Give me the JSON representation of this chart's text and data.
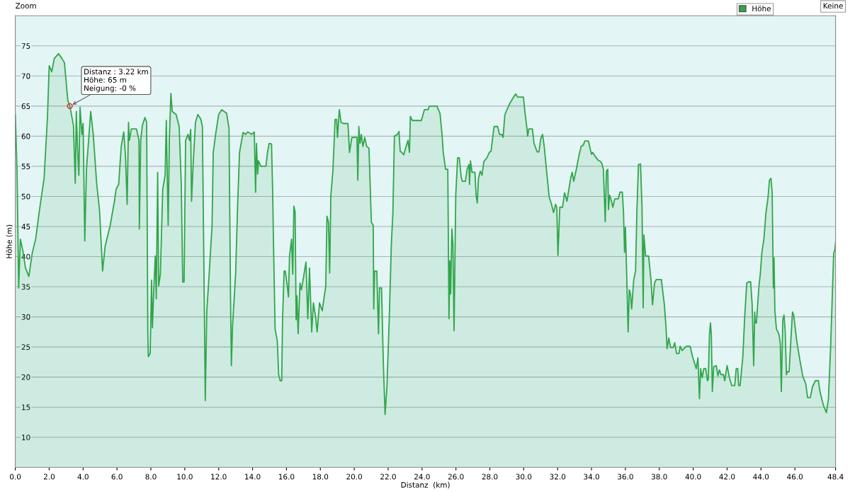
{
  "chart_data": {
    "type": "area",
    "xlabel": "Distanz  (km)",
    "ylabel": "Höhe (m)",
    "xlim": [
      0,
      48.4
    ],
    "ylim": [
      5,
      80
    ],
    "xticks": [
      {
        "value": 0,
        "label": "0.0"
      },
      {
        "value": 2,
        "label": "2.0"
      },
      {
        "value": 4,
        "label": "4.0"
      },
      {
        "value": 6,
        "label": "6.0"
      },
      {
        "value": 8,
        "label": "8.0"
      },
      {
        "value": 10,
        "label": "10.0"
      },
      {
        "value": 12,
        "label": "12.0"
      },
      {
        "value": 14,
        "label": "14.0"
      },
      {
        "value": 16,
        "label": "16.0"
      },
      {
        "value": 18,
        "label": "18.0"
      },
      {
        "value": 20,
        "label": "20.0"
      },
      {
        "value": 22,
        "label": "22.0"
      },
      {
        "value": 24,
        "label": "24.0"
      },
      {
        "value": 26,
        "label": "26.0"
      },
      {
        "value": 28,
        "label": "28.0"
      },
      {
        "value": 30,
        "label": "30.0"
      },
      {
        "value": 32,
        "label": "32.0"
      },
      {
        "value": 34,
        "label": "34.0"
      },
      {
        "value": 36,
        "label": "36.0"
      },
      {
        "value": 38,
        "label": "38.0"
      },
      {
        "value": 40,
        "label": "40.0"
      },
      {
        "value": 42,
        "label": "42.0"
      },
      {
        "value": 44,
        "label": "44.0"
      },
      {
        "value": 46,
        "label": "46.0"
      },
      48.4
    ],
    "yticks": [
      10,
      15,
      20,
      25,
      30,
      35,
      40,
      45,
      50,
      55,
      60,
      65,
      70,
      75
    ],
    "grid": "y",
    "legend": "top right",
    "annotations": [
      {
        "text": "Distanz : 3.22 km\nHöhe: 65 m\nNeigung: -0 %",
        "x": 3.22,
        "y": 65
      },
      "Zoom",
      "Keine"
    ],
    "series": [
      {
        "name": "Höhe",
        "color": "#30a64a",
        "x": [
          0,
          0.1,
          0.2,
          0.3,
          0.45,
          0.6,
          0.8,
          1.0,
          1.2,
          1.45,
          1.7,
          1.9,
          2.0,
          2.15,
          2.3,
          2.55,
          2.75,
          2.9,
          3.1,
          3.22,
          3.43,
          3.54,
          3.6,
          3.68,
          3.75,
          3.82,
          3.93,
          4.0,
          4.1,
          4.2,
          4.45,
          4.6,
          4.8,
          4.97,
          5.15,
          5.3,
          5.6,
          5.85,
          5.95,
          6.1,
          6.25,
          6.4,
          6.5,
          6.6,
          6.68,
          6.73,
          6.85,
          7.15,
          7.3,
          7.32,
          7.4,
          7.5,
          7.65,
          7.75,
          7.82,
          7.85,
          7.96,
          8.04,
          8.09,
          8.18,
          8.26,
          8.32,
          8.4,
          8.46,
          8.56,
          8.7,
          8.84,
          8.91,
          9.02,
          9.09,
          9.18,
          9.26,
          9.49,
          9.67,
          9.79,
          9.88,
          9.96,
          10.05,
          10.19,
          10.28,
          10.35,
          10.4,
          10.49,
          10.63,
          10.77,
          10.95,
          11.04,
          11.16,
          11.21,
          11.3,
          11.44,
          11.61,
          11.68,
          11.82,
          12.0,
          12.18,
          12.47,
          12.61,
          12.7,
          12.75,
          12.82,
          13.0,
          13.12,
          13.23,
          13.44,
          13.58,
          13.72,
          13.96,
          14.1,
          14.18,
          14.23,
          14.3,
          14.35,
          14.49,
          14.79,
          14.88,
          14.98,
          15.12,
          15.19,
          15.23,
          15.33,
          15.46,
          15.54,
          15.63,
          15.72,
          15.77,
          15.86,
          15.93,
          16.05,
          16.12,
          16.18,
          16.3,
          16.37,
          16.44,
          16.51,
          16.57,
          16.62,
          16.69,
          16.8,
          16.88,
          17.01,
          17.15,
          17.26,
          17.36,
          17.49,
          17.59,
          17.72,
          17.81,
          17.95,
          18.11,
          18.21,
          18.32,
          18.39,
          18.48,
          18.55,
          18.62,
          18.74,
          18.87,
          18.96,
          19.01,
          19.12,
          19.22,
          19.36,
          19.63,
          19.72,
          19.86,
          20.16,
          20.21,
          20.27,
          20.34,
          20.42,
          20.51,
          20.62,
          20.73,
          20.87,
          21.01,
          21.12,
          21.15,
          21.2,
          21.33,
          21.43,
          21.49,
          21.61,
          21.72,
          21.82,
          21.93,
          22.07,
          22.19,
          22.28,
          22.37,
          22.55,
          22.64,
          22.71,
          22.81,
          22.92,
          23.03,
          23.17,
          23.26,
          23.31,
          23.43,
          23.96,
          24.14,
          24.35,
          24.44,
          24.88,
          25.06,
          25.18,
          25.25,
          25.39,
          25.52,
          25.59,
          25.64,
          25.69,
          25.76,
          25.82,
          25.89,
          25.99,
          26.1,
          26.2,
          26.31,
          26.38,
          26.56,
          26.66,
          26.77,
          26.8,
          26.86,
          26.95,
          27.12,
          27.19,
          27.26,
          27.33,
          27.44,
          27.54,
          27.65,
          27.83,
          27.97,
          28.07,
          28.25,
          28.46,
          28.57,
          28.71,
          28.78,
          28.89,
          29.17,
          29.38,
          29.52,
          29.64,
          29.98,
          30.08,
          30.19,
          30.23,
          30.3,
          30.51,
          30.61,
          30.79,
          30.9,
          31.0,
          31.11,
          31.21,
          31.35,
          31.5,
          31.64,
          31.76,
          31.88,
          31.95,
          32.02,
          32.13,
          32.29,
          32.41,
          32.55,
          32.77,
          32.86,
          32.95,
          33.12,
          33.26,
          33.39,
          33.51,
          33.61,
          33.82,
          33.93,
          34.0,
          34.07,
          34.18,
          34.39,
          34.49,
          34.61,
          34.7,
          34.81,
          34.88,
          34.96,
          35.0,
          35.07,
          35.16,
          35.26,
          35.37,
          35.58,
          35.68,
          35.82,
          35.89,
          35.95,
          36.0,
          36.07,
          36.16,
          36.23,
          36.3,
          36.37,
          36.49,
          36.6,
          36.68,
          36.77,
          36.89,
          36.98,
          37.05,
          37.09,
          37.19,
          37.37,
          37.51,
          37.6,
          37.72,
          37.82,
          38.12,
          38.3,
          38.39,
          38.46,
          38.56,
          38.67,
          38.82,
          38.91,
          39.02,
          39.16,
          39.23,
          39.35,
          39.58,
          39.82,
          39.96,
          40.18,
          40.28,
          40.37,
          40.44,
          40.53,
          40.63,
          40.74,
          40.84,
          40.89,
          40.96,
          41.02,
          41.07,
          41.13,
          41.21,
          41.36,
          41.46,
          41.55,
          41.64,
          41.79,
          41.86,
          42.0,
          42.14,
          42.27,
          42.45,
          42.54,
          42.63,
          42.68,
          42.77,
          42.93,
          43.04,
          43.16,
          43.25,
          43.39,
          43.48,
          43.57,
          43.63,
          43.66,
          43.73,
          43.88,
          43.96,
          44.05,
          44.18,
          44.29,
          44.41,
          44.5,
          44.59,
          44.66,
          44.73,
          44.77,
          44.82,
          44.91,
          45.0,
          45.07,
          45.14,
          45.2,
          45.29,
          45.36,
          45.43,
          45.5,
          45.57,
          45.66,
          45.77,
          45.86,
          45.93,
          46.11,
          46.29,
          46.46,
          46.64,
          46.75,
          46.91,
          47.04,
          47.21,
          47.39,
          47.48,
          47.63,
          47.71,
          47.86,
          47.98,
          48.11,
          48.29,
          48.36,
          48.4
        ],
        "values": [
          63.6,
          54.5,
          34.8,
          42.9,
          40.9,
          38.1,
          36.7,
          40.6,
          42.9,
          48.2,
          53,
          63.3,
          71.7,
          70.7,
          72.9,
          73.7,
          72.9,
          72.2,
          65.9,
          65,
          61.8,
          52.2,
          64.1,
          57.3,
          53.5,
          64.8,
          60.3,
          62.1,
          42.6,
          54.5,
          64.1,
          60.3,
          52.2,
          47.7,
          37.6,
          41.7,
          45.2,
          49.2,
          51.2,
          52,
          58.3,
          60.7,
          56.8,
          48.7,
          62.3,
          59.3,
          61.2,
          61.2,
          59.3,
          44.6,
          59.3,
          61.8,
          63.1,
          62.3,
          27,
          23.4,
          23.9,
          36.1,
          28.2,
          35.1,
          40.1,
          33,
          54,
          35.1,
          37.1,
          51.2,
          53.5,
          62.6,
          45.2,
          59.3,
          67.1,
          64.1,
          63.6,
          61.6,
          52.2,
          35.8,
          35.8,
          59.3,
          60.3,
          59.3,
          61.1,
          49.2,
          55,
          62.3,
          63.6,
          62.8,
          61.6,
          30,
          16.1,
          31,
          37.1,
          45.2,
          57.3,
          60.3,
          63.6,
          64.4,
          63.8,
          61.3,
          33,
          21.9,
          28.5,
          37.1,
          48.7,
          57.3,
          60.6,
          60.3,
          60.7,
          60.3,
          60.7,
          50.7,
          58.8,
          53.7,
          55.9,
          55,
          55,
          57.3,
          58.8,
          58.7,
          50.2,
          42.9,
          28,
          26,
          20.4,
          19.4,
          19.4,
          29.5,
          37.6,
          37.6,
          35.1,
          33.3,
          40.1,
          42.9,
          37.1,
          48.4,
          47.4,
          29.5,
          33.5,
          27.2,
          35.6,
          34.5,
          36.6,
          39.1,
          29.7,
          38.1,
          27.5,
          32.3,
          30,
          27.5,
          32.3,
          31,
          33,
          35.1,
          46.7,
          45.7,
          37.3,
          50.2,
          54.2,
          62.8,
          62.8,
          59.8,
          64.4,
          62.3,
          62.1,
          62.1,
          57.3,
          59.8,
          59.8,
          52.7,
          61.6,
          58.8,
          60.3,
          58.3,
          59.8,
          58.3,
          58,
          45.7,
          45.2,
          31.3,
          37.6,
          37.6,
          27.2,
          34.8,
          34.8,
          21.9,
          13.8,
          18.4,
          30,
          42.1,
          47.2,
          60,
          60.3,
          60.8,
          57.5,
          57.3,
          56.9,
          58,
          59.3,
          57.3,
          63.3,
          62.6,
          62.6,
          64.4,
          64.4,
          65,
          65,
          63.8,
          60.3,
          57.3,
          54.5,
          54.5,
          29.7,
          39.3,
          33.8,
          44.6,
          42.1,
          27.7,
          50.2,
          56.4,
          56.4,
          53.2,
          52.5,
          52.5,
          54.5,
          55.3,
          52,
          55.9,
          54,
          54,
          50.2,
          48.9,
          53,
          54.2,
          53.5,
          55.8,
          56.4,
          57.3,
          57.5,
          61.6,
          61.6,
          60.3,
          60.3,
          59.8,
          63.6,
          65.4,
          66.4,
          67,
          66.5,
          66.5,
          63.8,
          61.3,
          60,
          61.2,
          61.2,
          58.8,
          57.4,
          57.4,
          59.5,
          60.3,
          58.3,
          54.2,
          49.9,
          48.7,
          47.3,
          48.7,
          48.2,
          40.2,
          48.2,
          48.2,
          50.6,
          49.2,
          53,
          54,
          52.5,
          54.7,
          56.8,
          58.3,
          58.5,
          59.2,
          59.2,
          57.8,
          57,
          57.3,
          56.8,
          56,
          55.9,
          55.5,
          54.5,
          45.8,
          54.2,
          54.5,
          47.8,
          50.2,
          49.4,
          48.2,
          49.6,
          49.6,
          50.7,
          50.7,
          47.2,
          40.7,
          44.9,
          37.6,
          27.5,
          34.5,
          33.8,
          31.3,
          36.1,
          37.6,
          47.7,
          55.3,
          55.4,
          48.2,
          31.5,
          43.6,
          40.1,
          40.1,
          36.1,
          32,
          35.6,
          36.2,
          36.2,
          32,
          28.5,
          24.7,
          26.5,
          24.9,
          24.9,
          25.7,
          23.9,
          23.9,
          25.1,
          24.4,
          25.1,
          25.1,
          23.4,
          21.4,
          23.2,
          16.4,
          21.4,
          19.9,
          21.4,
          21.4,
          19.4,
          19.6,
          27,
          29,
          27,
          17.6,
          21.7,
          21.9,
          20.2,
          21.2,
          20.4,
          20.4,
          19.4,
          21.9,
          19.9,
          18.6,
          18.6,
          21.4,
          21.4,
          18.6,
          18.6,
          23.4,
          30,
          35.6,
          35.8,
          35.8,
          32,
          21.9,
          30.8,
          29,
          29,
          35.1,
          37.1,
          40.6,
          43.1,
          47.2,
          49.7,
          52.7,
          53,
          50.7,
          34.8,
          39.8,
          31,
          28,
          27.5,
          27,
          25.5,
          17.6,
          29.5,
          30.3,
          27.5,
          20.4,
          20.9,
          20.9,
          26.5,
          30.8,
          30.3,
          26,
          22.9,
          20.2,
          18.9,
          16.6,
          16.6,
          18.4,
          19.4,
          19.4,
          17.6,
          15.9,
          15.1,
          14.1,
          16.4,
          25,
          40.6,
          41.1,
          42.4
        ]
      }
    ]
  }
}
